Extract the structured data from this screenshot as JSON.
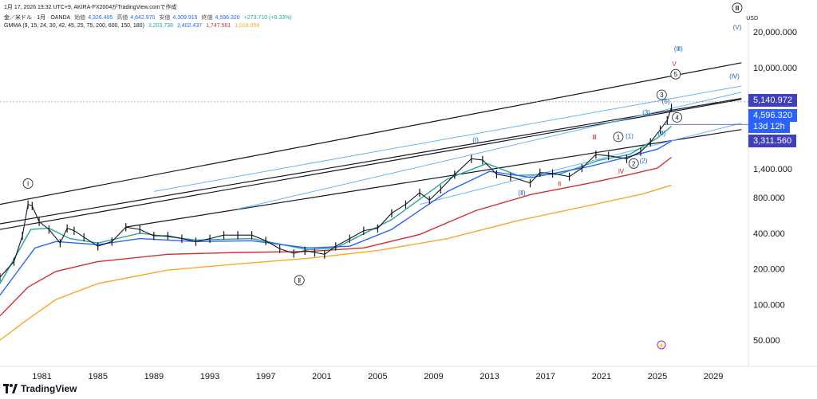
{
  "header": {
    "line1": "1月 17, 2026 19:32 UTC+9,  AKIRA-FX2004がTradingView.comで作成",
    "symbol": "金／米ドル · 1月 · OANDA",
    "open_label": "始値",
    "open": "4,326.405",
    "high_label": "高値",
    "high": "4,642.970",
    "low_label": "安値",
    "low": "4,309.915",
    "close_label": "終値",
    "close": "4,596.320",
    "change": "+273.710 (+6.33%)",
    "indicator_name": "GMMA (9, 15, 24, 30, 42, 45, 25, 75, 200, 600, 150, 180)",
    "ind_v1": "3,203.738",
    "ind_v2": "2,402.437",
    "ind_v3": "1,747.561",
    "ind_v4": "1,018.058"
  },
  "currency": "USD",
  "price_tags": {
    "upper": "5,140.972",
    "current": "4,596.320",
    "countdown": "13d 12h",
    "lower": "3,311.560"
  },
  "footer": {
    "brand": "TradingView"
  },
  "colors": {
    "ema1": "#26a69a",
    "ema2": "#2962ff",
    "ema3": "#d32f2f",
    "ema4": "#f9a825",
    "price": "#131722",
    "channel_dark": "#131722",
    "channel_light": "#64b5f6",
    "wave_blue": "#1565c0",
    "wave_red": "#d32f2f"
  },
  "chart_data": {
    "type": "line",
    "title": "金／米ドル · 1月 · OANDA",
    "yscale": "log",
    "ylim": [
      30,
      30000
    ],
    "xlim": [
      1978,
      2031.5
    ],
    "x_ticks": [
      1981,
      1985,
      1989,
      1993,
      1997,
      2001,
      2005,
      2009,
      2013,
      2017,
      2021,
      2025,
      2029
    ],
    "x_tick_labels": [
      "1981",
      "1985",
      "1989",
      "1993",
      "1997",
      "2001",
      "2005",
      "2009",
      "2013",
      "2017",
      "2021",
      "2025",
      "2029"
    ],
    "y_ticks": [
      50,
      100,
      200,
      400,
      800,
      1400,
      10000,
      20000
    ],
    "y_tick_labels": [
      "50.000",
      "100.000",
      "200.000",
      "400.000",
      "800.000",
      "1,400.000",
      "10,000.000",
      "20,000.000"
    ],
    "series": [
      {
        "name": "price",
        "x": [
          1978,
          1979,
          1979.6,
          1980.0,
          1980.3,
          1980.8,
          1981.5,
          1982.3,
          1982.8,
          1983.3,
          1984,
          1985,
          1986,
          1987,
          1988,
          1989,
          1990,
          1991,
          1992,
          1993,
          1994,
          1995,
          1996,
          1997,
          1998,
          1999,
          1999.8,
          2000.5,
          2001.2,
          2002,
          2003,
          2004,
          2005,
          2006,
          2007,
          2008,
          2008.7,
          2009.5,
          2010.5,
          2011.7,
          2012.5,
          2013.5,
          2014.5,
          2015.9,
          2016.6,
          2017.5,
          2018.7,
          2019.6,
          2020.6,
          2021.5,
          2022.8,
          2023.8,
          2024.5,
          2025.2,
          2025.7,
          2026.0
        ],
        "y": [
          170,
          230,
          380,
          700,
          680,
          500,
          430,
          330,
          440,
          420,
          370,
          310,
          340,
          450,
          430,
          380,
          380,
          360,
          340,
          360,
          385,
          385,
          385,
          345,
          295,
          270,
          285,
          275,
          265,
          310,
          360,
          420,
          440,
          590,
          700,
          880,
          760,
          940,
          1250,
          1700,
          1660,
          1260,
          1200,
          1060,
          1300,
          1280,
          1200,
          1420,
          1850,
          1800,
          1700,
          1950,
          2350,
          3000,
          3600,
          4596
        ]
      },
      {
        "name": "EMA short",
        "x": [
          1978,
          1980.2,
          1981.5,
          1983,
          1985,
          1988,
          1992,
          1996,
          2000,
          2002,
          2006,
          2010,
          2012.8,
          2015,
          2018,
          2020.8,
          2023,
          2025,
          2026
        ],
        "y": [
          150,
          430,
          440,
          360,
          330,
          400,
          350,
          360,
          290,
          300,
          520,
          1150,
          1550,
          1230,
          1260,
          1650,
          1850,
          2550,
          3200
        ]
      },
      {
        "name": "EMA long",
        "x": [
          1978,
          1980.5,
          1982,
          1985,
          1988,
          1992,
          1996,
          2000,
          2003,
          2006,
          2010,
          2013,
          2016,
          2020,
          2023,
          2025,
          2026
        ],
        "y": [
          120,
          300,
          340,
          320,
          360,
          340,
          345,
          300,
          310,
          430,
          900,
          1330,
          1180,
          1450,
          1780,
          2050,
          2400
        ]
      },
      {
        "name": "EMA 200",
        "x": [
          1978,
          1980,
          1982,
          1985,
          1990,
          1995,
          2000,
          2004,
          2008,
          2012,
          2016,
          2020,
          2023,
          2025,
          2026
        ],
        "y": [
          80,
          140,
          190,
          230,
          265,
          275,
          280,
          300,
          390,
          620,
          850,
          1050,
          1250,
          1420,
          1750
        ]
      },
      {
        "name": "EMA 600",
        "x": [
          1978,
          1980,
          1982,
          1985,
          1990,
          1995,
          2000,
          2005,
          2010,
          2015,
          2020,
          2024,
          2026
        ],
        "y": [
          50,
          75,
          110,
          150,
          195,
          220,
          245,
          285,
          360,
          510,
          680,
          860,
          1018
        ]
      }
    ],
    "channels": [
      {
        "kind": "dark",
        "x": [
          1978,
          2031
        ],
        "y": [
          700,
          11000
        ]
      },
      {
        "kind": "dark",
        "x": [
          1978,
          2031
        ],
        "y": [
          480,
          5500
        ]
      },
      {
        "kind": "dark",
        "x": [
          1978,
          2031
        ],
        "y": [
          430,
          5400
        ]
      },
      {
        "kind": "dark",
        "x": [
          1987,
          2031
        ],
        "y": [
          450,
          3000
        ]
      },
      {
        "kind": "light",
        "x": [
          1989,
          2031
        ],
        "y": [
          900,
          7000
        ]
      },
      {
        "kind": "light",
        "x": [
          1995,
          2031
        ],
        "y": [
          640,
          6200
        ]
      },
      {
        "kind": "light",
        "x": [
          2008,
          2031
        ],
        "y": [
          700,
          3400
        ]
      }
    ],
    "wave_labels": [
      {
        "text": "Ⅰ",
        "x": 1980.0,
        "y": 1050,
        "style": "circle"
      },
      {
        "text": "Ⅱ",
        "x": 1999.4,
        "y": 160,
        "style": "circle"
      },
      {
        "text": "Ⅲ",
        "x": 2030.7,
        "y": 32000,
        "style": "circle"
      },
      {
        "text": "(V)",
        "x": 2030.7,
        "y": 22000,
        "style": "blue"
      },
      {
        "text": "(Ⅲ)",
        "x": 2026.5,
        "y": 14500,
        "style": "blue"
      },
      {
        "text": "V",
        "x": 2026.2,
        "y": 10800,
        "style": "red"
      },
      {
        "text": "5",
        "x": 2026.3,
        "y": 8800,
        "style": "circle"
      },
      {
        "text": "(Ⅳ)",
        "x": 2030.5,
        "y": 8500,
        "style": "blue"
      },
      {
        "text": "3",
        "x": 2025.3,
        "y": 5900,
        "style": "circle"
      },
      {
        "text": "(5)",
        "x": 2025.6,
        "y": 5200,
        "style": "blue"
      },
      {
        "text": "(3)",
        "x": 2024.2,
        "y": 4200,
        "style": "blue"
      },
      {
        "text": "4",
        "x": 2026.4,
        "y": 3800,
        "style": "circle"
      },
      {
        "text": "(4)",
        "x": 2025.3,
        "y": 2800,
        "style": "blue"
      },
      {
        "text": "Ⅲ",
        "x": 2020.5,
        "y": 2600,
        "style": "red"
      },
      {
        "text": "1",
        "x": 2022.2,
        "y": 2600,
        "style": "circle"
      },
      {
        "text": "(1)",
        "x": 2023.0,
        "y": 2650,
        "style": "blue"
      },
      {
        "text": "(Ⅰ)",
        "x": 2012.0,
        "y": 2450,
        "style": "blue"
      },
      {
        "text": "2",
        "x": 2023.3,
        "y": 1550,
        "style": "circle"
      },
      {
        "text": "(2)",
        "x": 2024.0,
        "y": 1650,
        "style": "blue"
      },
      {
        "text": "Ⅳ",
        "x": 2022.4,
        "y": 1330,
        "style": "red"
      },
      {
        "text": "Ⅱ",
        "x": 2018.0,
        "y": 1050,
        "style": "red"
      },
      {
        "text": "(Ⅱ)",
        "x": 2015.3,
        "y": 880,
        "style": "blue"
      }
    ],
    "dotted_line_y": 5140.972,
    "horizontal_line_y": 3311.56
  }
}
